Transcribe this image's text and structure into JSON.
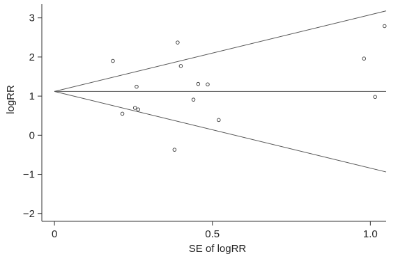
{
  "chart_data": {
    "type": "scatter",
    "xlabel": "SE of logRR",
    "ylabel": "logRR",
    "xlim": [
      -0.04,
      1.05
    ],
    "ylim": [
      -2.2,
      3.35
    ],
    "xticks": [
      0,
      0.5,
      1.0
    ],
    "xtick_labels": [
      "0",
      "0.5",
      "1.0"
    ],
    "yticks": [
      -2,
      -1,
      0,
      1,
      2,
      3
    ],
    "ytick_labels": [
      "−2",
      "−1",
      "0",
      "1",
      "2",
      "3"
    ],
    "pooled_estimate": 1.12,
    "funnel_slope": 1.96,
    "grid": false,
    "points": [
      {
        "x": 0.185,
        "y": 1.9
      },
      {
        "x": 0.215,
        "y": 0.55
      },
      {
        "x": 0.255,
        "y": 0.7
      },
      {
        "x": 0.265,
        "y": 0.66
      },
      {
        "x": 0.26,
        "y": 1.24
      },
      {
        "x": 0.38,
        "y": -0.37
      },
      {
        "x": 0.39,
        "y": 2.37
      },
      {
        "x": 0.4,
        "y": 1.77
      },
      {
        "x": 0.44,
        "y": 0.91
      },
      {
        "x": 0.455,
        "y": 1.31
      },
      {
        "x": 0.485,
        "y": 1.3
      },
      {
        "x": 0.52,
        "y": 0.39
      },
      {
        "x": 0.98,
        "y": 1.96
      },
      {
        "x": 1.015,
        "y": 0.98
      },
      {
        "x": 1.045,
        "y": 2.79
      }
    ]
  }
}
